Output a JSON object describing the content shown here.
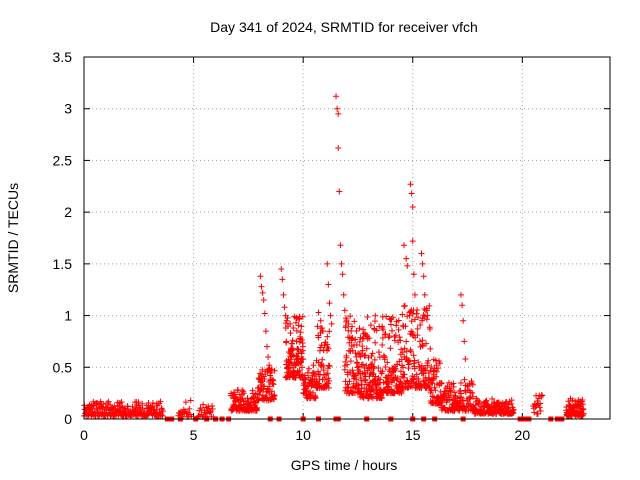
{
  "chart_data": {
    "type": "scatter",
    "title": "Day 341 of 2024, SRMTID for receiver vfch",
    "xlabel": "GPS time / hours",
    "ylabel": "SRMTID / TECUs",
    "xlim": [
      0,
      24
    ],
    "ylim": [
      0,
      3.5
    ],
    "grid": true,
    "marker": "+",
    "color": "#ff0000",
    "x_ticks": [
      {
        "value": 0,
        "label": "0"
      },
      {
        "value": 5,
        "label": "5"
      },
      {
        "value": 10,
        "label": "10"
      },
      {
        "value": 15,
        "label": "15"
      },
      {
        "value": 20,
        "label": "20"
      }
    ],
    "y_ticks": [
      {
        "value": 0,
        "label": "0"
      },
      {
        "value": 0.5,
        "label": "0.5"
      },
      {
        "value": 1,
        "label": "1"
      },
      {
        "value": 1.5,
        "label": "1.5"
      },
      {
        "value": 2,
        "label": "2"
      },
      {
        "value": 2.5,
        "label": "2.5"
      },
      {
        "value": 3,
        "label": "3"
      },
      {
        "value": 3.5,
        "label": "3.5"
      }
    ],
    "zero_markers_x": [
      3.8,
      4.0,
      4.4,
      5.1,
      5.6,
      6.0,
      6.3,
      6.6,
      8.5,
      8.9,
      10.0,
      10.7,
      11.5,
      11.6,
      12.9,
      14.0,
      15.0,
      15.5,
      16.0,
      17.3,
      19.9,
      20.1,
      20.3,
      21.3,
      21.6,
      21.8
    ],
    "segments": [
      {
        "x_start": 0.0,
        "x_end": 3.6,
        "y_min": 0.03,
        "y_max": 0.17,
        "count": 230
      },
      {
        "x_start": 4.3,
        "x_end": 4.9,
        "y_min": 0.02,
        "y_max": 0.18,
        "count": 20
      },
      {
        "x_start": 5.2,
        "x_end": 5.9,
        "y_min": 0.02,
        "y_max": 0.14,
        "count": 25
      },
      {
        "x_start": 6.7,
        "x_end": 7.9,
        "y_min": 0.08,
        "y_max": 0.28,
        "count": 110
      },
      {
        "x_start": 7.9,
        "x_end": 8.7,
        "y_min": 0.18,
        "y_max": 0.5,
        "count": 80
      },
      {
        "x_start": 9.2,
        "x_end": 10.0,
        "y_min": 0.4,
        "y_max": 1.0,
        "count": 120
      },
      {
        "x_start": 10.0,
        "x_end": 10.6,
        "y_min": 0.2,
        "y_max": 0.55,
        "count": 60
      },
      {
        "x_start": 10.6,
        "x_end": 11.2,
        "y_min": 0.3,
        "y_max": 0.9,
        "count": 70
      },
      {
        "x_start": 11.9,
        "x_end": 12.6,
        "y_min": 0.25,
        "y_max": 1.0,
        "count": 90
      },
      {
        "x_start": 12.6,
        "x_end": 13.6,
        "y_min": 0.2,
        "y_max": 1.0,
        "count": 140
      },
      {
        "x_start": 13.6,
        "x_end": 14.5,
        "y_min": 0.25,
        "y_max": 1.0,
        "count": 120
      },
      {
        "x_start": 14.5,
        "x_end": 15.8,
        "y_min": 0.3,
        "y_max": 1.1,
        "count": 150
      },
      {
        "x_start": 15.8,
        "x_end": 16.3,
        "y_min": 0.15,
        "y_max": 0.6,
        "count": 60
      },
      {
        "x_start": 16.3,
        "x_end": 17.2,
        "y_min": 0.08,
        "y_max": 0.35,
        "count": 90
      },
      {
        "x_start": 17.2,
        "x_end": 17.8,
        "y_min": 0.08,
        "y_max": 0.4,
        "count": 50
      },
      {
        "x_start": 17.8,
        "x_end": 19.6,
        "y_min": 0.05,
        "y_max": 0.2,
        "count": 150
      },
      {
        "x_start": 20.5,
        "x_end": 20.9,
        "y_min": 0.05,
        "y_max": 0.25,
        "count": 20
      },
      {
        "x_start": 22.0,
        "x_end": 22.8,
        "y_min": 0.03,
        "y_max": 0.2,
        "count": 90
      }
    ],
    "spikes": [
      {
        "x": 8.05,
        "y": 1.38
      },
      {
        "x": 8.1,
        "y": 1.28
      },
      {
        "x": 8.15,
        "y": 1.22
      },
      {
        "x": 8.2,
        "y": 1.15
      },
      {
        "x": 8.25,
        "y": 1.02
      },
      {
        "x": 8.3,
        "y": 0.85
      },
      {
        "x": 8.35,
        "y": 0.7
      },
      {
        "x": 8.4,
        "y": 0.6
      },
      {
        "x": 8.45,
        "y": 0.52
      },
      {
        "x": 8.55,
        "y": 0.48
      },
      {
        "x": 9.0,
        "y": 1.45
      },
      {
        "x": 9.05,
        "y": 1.35
      },
      {
        "x": 9.1,
        "y": 1.2
      },
      {
        "x": 9.15,
        "y": 1.08
      },
      {
        "x": 9.2,
        "y": 1.0
      },
      {
        "x": 9.25,
        "y": 0.95
      },
      {
        "x": 9.4,
        "y": 0.92
      },
      {
        "x": 9.55,
        "y": 0.88
      },
      {
        "x": 9.7,
        "y": 0.75
      },
      {
        "x": 10.7,
        "y": 1.03
      },
      {
        "x": 10.8,
        "y": 0.95
      },
      {
        "x": 10.9,
        "y": 0.85
      },
      {
        "x": 11.1,
        "y": 1.5
      },
      {
        "x": 11.15,
        "y": 1.3
      },
      {
        "x": 11.2,
        "y": 1.12
      },
      {
        "x": 11.25,
        "y": 1.0
      },
      {
        "x": 11.3,
        "y": 0.92
      },
      {
        "x": 11.5,
        "y": 3.12
      },
      {
        "x": 11.55,
        "y": 3.0
      },
      {
        "x": 11.6,
        "y": 2.95
      },
      {
        "x": 11.6,
        "y": 2.62
      },
      {
        "x": 11.65,
        "y": 2.2
      },
      {
        "x": 11.7,
        "y": 1.68
      },
      {
        "x": 11.75,
        "y": 1.5
      },
      {
        "x": 11.8,
        "y": 1.4
      },
      {
        "x": 11.85,
        "y": 1.2
      },
      {
        "x": 11.9,
        "y": 1.05
      },
      {
        "x": 11.95,
        "y": 0.9
      },
      {
        "x": 14.6,
        "y": 1.68
      },
      {
        "x": 14.7,
        "y": 1.55
      },
      {
        "x": 14.75,
        "y": 1.48
      },
      {
        "x": 14.9,
        "y": 2.27
      },
      {
        "x": 14.95,
        "y": 2.18
      },
      {
        "x": 15.0,
        "y": 2.05
      },
      {
        "x": 15.0,
        "y": 1.72
      },
      {
        "x": 15.05,
        "y": 1.4
      },
      {
        "x": 15.1,
        "y": 1.2
      },
      {
        "x": 15.4,
        "y": 1.6
      },
      {
        "x": 15.45,
        "y": 1.5
      },
      {
        "x": 15.5,
        "y": 1.38
      },
      {
        "x": 15.55,
        "y": 1.2
      },
      {
        "x": 15.6,
        "y": 1.05
      },
      {
        "x": 17.2,
        "y": 1.2
      },
      {
        "x": 17.25,
        "y": 1.1
      },
      {
        "x": 17.3,
        "y": 0.95
      },
      {
        "x": 17.35,
        "y": 0.75
      },
      {
        "x": 17.4,
        "y": 0.58
      }
    ]
  }
}
